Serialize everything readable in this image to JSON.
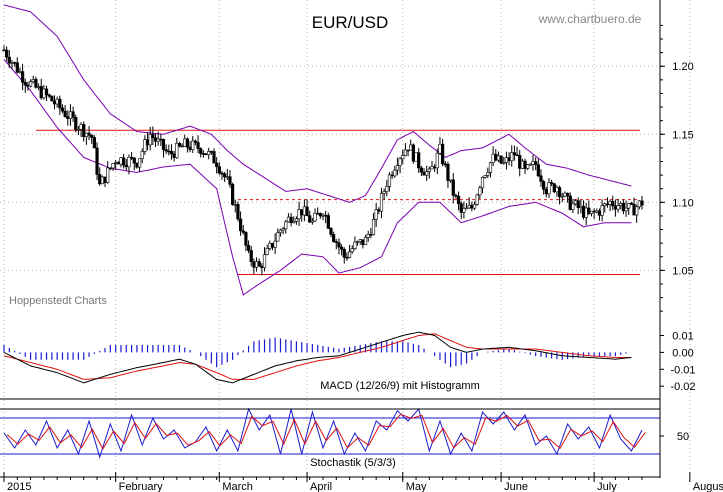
{
  "title": "EUR/USD",
  "watermark": "www.chartbuero.de",
  "source_label": "Hoppenstedt Charts",
  "colors": {
    "price_up": "#ffffff",
    "price_down": "#000000",
    "band": "#7a00b0",
    "level": "#e01010",
    "macd": "#000000",
    "signal": "#e01010",
    "histogram": "#1a1ad0",
    "stoch_k": "#1a1ad0",
    "stoch_d": "#e01010",
    "grid": "#b8b8b8"
  },
  "chart_data": [
    {
      "type": "candlestick",
      "title": "EUR/USD",
      "x_labels": [
        "2015",
        "February",
        "March",
        "April",
        "May",
        "June",
        "July",
        "August"
      ],
      "y_ticks": [
        1.05,
        1.1,
        1.15,
        1.2
      ],
      "ylim": [
        1.015,
        1.245
      ],
      "grid": true,
      "support": 1.047,
      "resistance": 1.153,
      "dashed_level": 1.102,
      "close_path": [
        [
          0,
          1.212
        ],
        [
          8,
          1.19
        ],
        [
          18,
          1.175
        ],
        [
          26,
          1.16
        ],
        [
          33,
          1.148
        ],
        [
          36,
          1.112
        ],
        [
          42,
          1.132
        ],
        [
          50,
          1.13
        ],
        [
          55,
          1.15
        ],
        [
          62,
          1.135
        ],
        [
          68,
          1.142
        ],
        [
          74,
          1.14
        ],
        [
          80,
          1.13
        ],
        [
          84,
          1.115
        ],
        [
          88,
          1.09
        ],
        [
          92,
          1.06
        ],
        [
          96,
          1.052
        ],
        [
          100,
          1.066
        ],
        [
          104,
          1.08
        ],
        [
          108,
          1.09
        ],
        [
          112,
          1.094
        ],
        [
          116,
          1.085
        ],
        [
          120,
          1.095
        ],
        [
          124,
          1.075
        ],
        [
          128,
          1.06
        ],
        [
          132,
          1.068
        ],
        [
          136,
          1.072
        ],
        [
          140,
          1.09
        ],
        [
          144,
          1.115
        ],
        [
          148,
          1.132
        ],
        [
          152,
          1.142
        ],
        [
          156,
          1.128
        ],
        [
          160,
          1.12
        ],
        [
          164,
          1.138
        ],
        [
          168,
          1.112
        ],
        [
          172,
          1.092
        ],
        [
          176,
          1.096
        ],
        [
          180,
          1.12
        ],
        [
          184,
          1.132
        ],
        [
          188,
          1.128
        ],
        [
          192,
          1.136
        ],
        [
          196,
          1.122
        ],
        [
          200,
          1.128
        ],
        [
          204,
          1.11
        ],
        [
          208,
          1.112
        ],
        [
          212,
          1.1
        ],
        [
          216,
          1.096
        ],
        [
          220,
          1.09
        ],
        [
          224,
          1.094
        ],
        [
          228,
          1.1
        ],
        [
          232,
          1.098
        ],
        [
          236,
          1.094
        ],
        [
          240,
          1.1
        ]
      ],
      "bands_upper": [
        [
          0,
          1.245
        ],
        [
          10,
          1.24
        ],
        [
          20,
          1.222
        ],
        [
          30,
          1.19
        ],
        [
          40,
          1.165
        ],
        [
          50,
          1.152
        ],
        [
          60,
          1.15
        ],
        [
          70,
          1.156
        ],
        [
          78,
          1.15
        ],
        [
          84,
          1.138
        ],
        [
          90,
          1.128
        ],
        [
          98,
          1.118
        ],
        [
          106,
          1.108
        ],
        [
          114,
          1.11
        ],
        [
          122,
          1.105
        ],
        [
          130,
          1.1
        ],
        [
          136,
          1.105
        ],
        [
          142,
          1.125
        ],
        [
          148,
          1.146
        ],
        [
          154,
          1.152
        ],
        [
          160,
          1.142
        ],
        [
          166,
          1.133
        ],
        [
          172,
          1.138
        ],
        [
          180,
          1.14
        ],
        [
          190,
          1.15
        ],
        [
          196,
          1.14
        ],
        [
          204,
          1.128
        ],
        [
          212,
          1.125
        ],
        [
          220,
          1.12
        ],
        [
          228,
          1.116
        ],
        [
          236,
          1.112
        ]
      ],
      "bands_lower": [
        [
          0,
          1.205
        ],
        [
          10,
          1.182
        ],
        [
          20,
          1.155
        ],
        [
          30,
          1.133
        ],
        [
          40,
          1.125
        ],
        [
          50,
          1.122
        ],
        [
          60,
          1.126
        ],
        [
          70,
          1.128
        ],
        [
          80,
          1.11
        ],
        [
          86,
          1.06
        ],
        [
          90,
          1.032
        ],
        [
          96,
          1.04
        ],
        [
          104,
          1.05
        ],
        [
          112,
          1.062
        ],
        [
          120,
          1.06
        ],
        [
          126,
          1.048
        ],
        [
          134,
          1.052
        ],
        [
          142,
          1.06
        ],
        [
          148,
          1.085
        ],
        [
          156,
          1.1
        ],
        [
          164,
          1.1
        ],
        [
          172,
          1.085
        ],
        [
          180,
          1.09
        ],
        [
          190,
          1.097
        ],
        [
          200,
          1.1
        ],
        [
          210,
          1.092
        ],
        [
          218,
          1.082
        ],
        [
          226,
          1.085
        ],
        [
          236,
          1.085
        ]
      ]
    },
    {
      "type": "line",
      "title": "MACD (12/26/9) mit Histogramm",
      "y_ticks": [
        -0.02,
        -0.01,
        0.0,
        0.01
      ],
      "ylim": [
        -0.027,
        0.018
      ],
      "macd": [
        [
          0,
          0.0
        ],
        [
          10,
          -0.008
        ],
        [
          20,
          -0.012
        ],
        [
          30,
          -0.018
        ],
        [
          40,
          -0.013
        ],
        [
          50,
          -0.009
        ],
        [
          60,
          -0.006
        ],
        [
          66,
          -0.004
        ],
        [
          72,
          -0.007
        ],
        [
          80,
          -0.016
        ],
        [
          86,
          -0.018
        ],
        [
          94,
          -0.013
        ],
        [
          102,
          -0.008
        ],
        [
          110,
          -0.005
        ],
        [
          118,
          -0.003
        ],
        [
          126,
          -0.002
        ],
        [
          134,
          0.002
        ],
        [
          142,
          0.006
        ],
        [
          150,
          0.01
        ],
        [
          156,
          0.012
        ],
        [
          162,
          0.01
        ],
        [
          168,
          0.003
        ],
        [
          174,
          0.0
        ],
        [
          180,
          0.002
        ],
        [
          190,
          0.003
        ],
        [
          200,
          0.001
        ],
        [
          210,
          -0.002
        ],
        [
          220,
          -0.003
        ],
        [
          230,
          -0.004
        ],
        [
          236,
          -0.003
        ]
      ],
      "signal": [
        [
          0,
          -0.002
        ],
        [
          10,
          -0.006
        ],
        [
          20,
          -0.01
        ],
        [
          30,
          -0.016
        ],
        [
          40,
          -0.015
        ],
        [
          50,
          -0.011
        ],
        [
          60,
          -0.008
        ],
        [
          66,
          -0.006
        ],
        [
          72,
          -0.007
        ],
        [
          80,
          -0.012
        ],
        [
          86,
          -0.016
        ],
        [
          94,
          -0.016
        ],
        [
          102,
          -0.012
        ],
        [
          110,
          -0.008
        ],
        [
          118,
          -0.005
        ],
        [
          126,
          -0.003
        ],
        [
          134,
          0.0
        ],
        [
          142,
          0.003
        ],
        [
          150,
          0.007
        ],
        [
          156,
          0.01
        ],
        [
          162,
          0.011
        ],
        [
          168,
          0.007
        ],
        [
          174,
          0.003
        ],
        [
          180,
          0.002
        ],
        [
          190,
          0.002
        ],
        [
          200,
          0.002
        ],
        [
          210,
          0.0
        ],
        [
          220,
          -0.002
        ],
        [
          230,
          -0.003
        ],
        [
          236,
          -0.003
        ]
      ]
    },
    {
      "type": "line",
      "title": "Stochastik (5/3/3)",
      "y_ticks": [
        50
      ],
      "ylim": [
        -10,
        110
      ],
      "levels": [
        20,
        80
      ],
      "k": [
        [
          0,
          55
        ],
        [
          4,
          30
        ],
        [
          8,
          60
        ],
        [
          12,
          35
        ],
        [
          16,
          75
        ],
        [
          20,
          30
        ],
        [
          24,
          60
        ],
        [
          28,
          20
        ],
        [
          32,
          75
        ],
        [
          36,
          15
        ],
        [
          40,
          70
        ],
        [
          44,
          25
        ],
        [
          48,
          85
        ],
        [
          52,
          35
        ],
        [
          56,
          80
        ],
        [
          60,
          45
        ],
        [
          64,
          60
        ],
        [
          68,
          30
        ],
        [
          72,
          40
        ],
        [
          76,
          65
        ],
        [
          80,
          25
        ],
        [
          84,
          60
        ],
        [
          88,
          25
        ],
        [
          92,
          95
        ],
        [
          96,
          60
        ],
        [
          100,
          85
        ],
        [
          104,
          20
        ],
        [
          108,
          95
        ],
        [
          112,
          20
        ],
        [
          116,
          90
        ],
        [
          120,
          30
        ],
        [
          124,
          75
        ],
        [
          128,
          20
        ],
        [
          132,
          55
        ],
        [
          136,
          25
        ],
        [
          140,
          75
        ],
        [
          144,
          60
        ],
        [
          148,
          92
        ],
        [
          152,
          75
        ],
        [
          156,
          95
        ],
        [
          160,
          25
        ],
        [
          164,
          75
        ],
        [
          168,
          20
        ],
        [
          172,
          55
        ],
        [
          176,
          25
        ],
        [
          180,
          90
        ],
        [
          184,
          70
        ],
        [
          188,
          90
        ],
        [
          192,
          60
        ],
        [
          196,
          85
        ],
        [
          200,
          35
        ],
        [
          204,
          50
        ],
        [
          208,
          20
        ],
        [
          212,
          70
        ],
        [
          216,
          45
        ],
        [
          220,
          65
        ],
        [
          224,
          30
        ],
        [
          228,
          85
        ],
        [
          232,
          45
        ],
        [
          236,
          25
        ],
        [
          240,
          60
        ]
      ]
    }
  ],
  "axis_bottom": {
    "labels": [
      "2015",
      "February",
      "March",
      "April",
      "May",
      "June",
      "July",
      "August"
    ],
    "positions": [
      0,
      42,
      81,
      114,
      150,
      187,
      222,
      258
    ]
  }
}
